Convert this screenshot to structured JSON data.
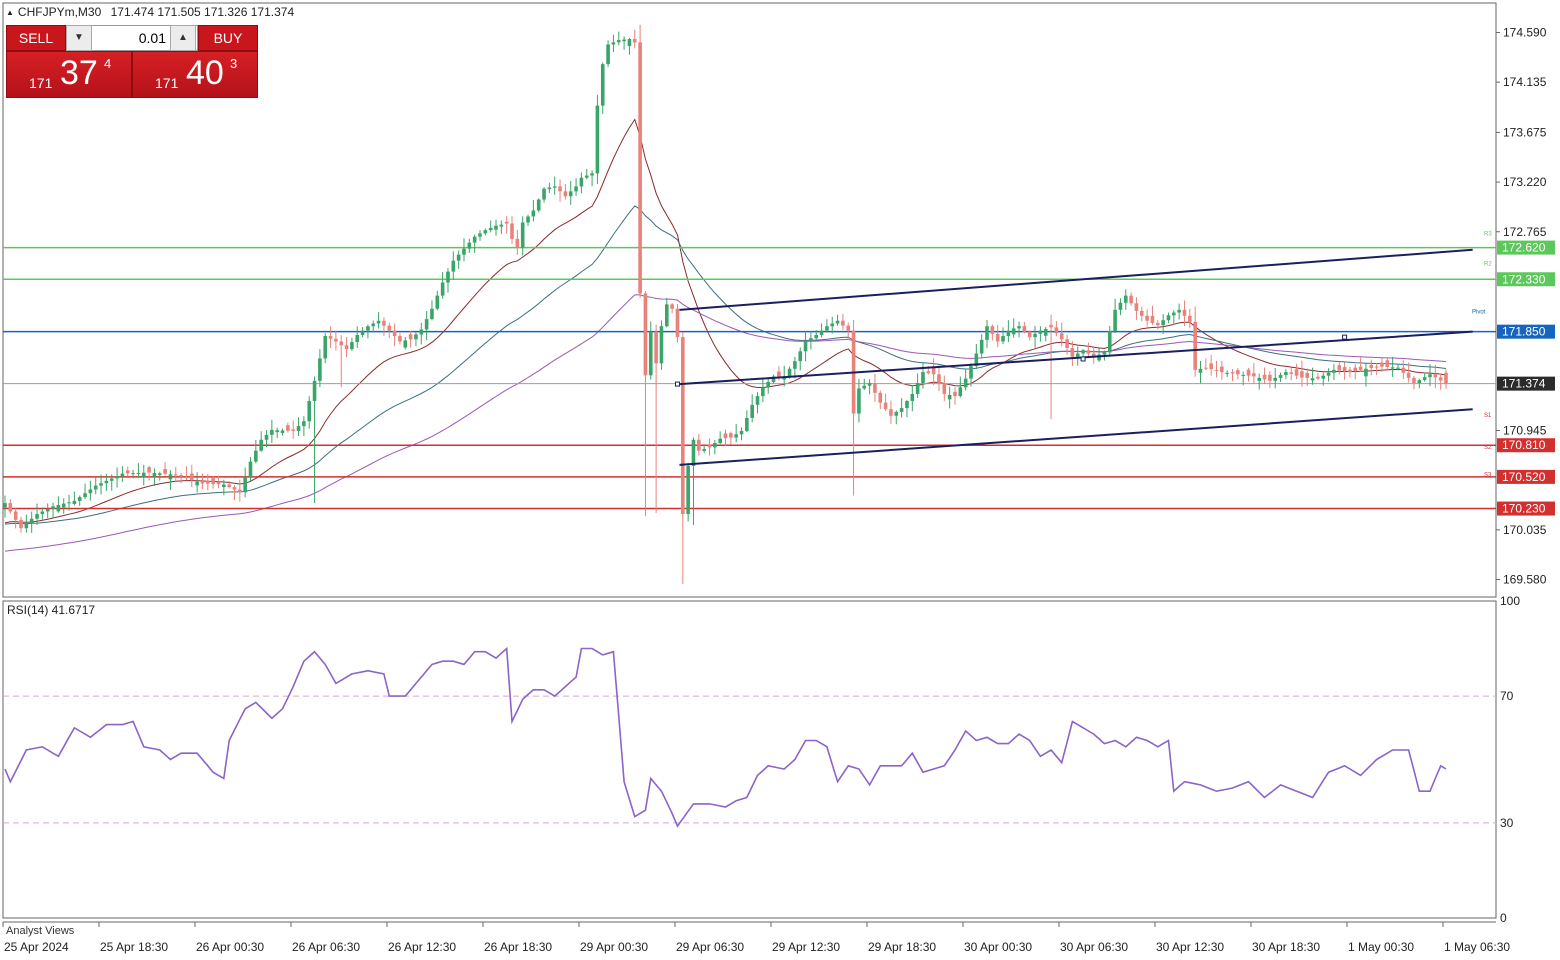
{
  "header": {
    "symbol": "CHFJPYm,M30",
    "ohlc": "171.474 171.505 171.326 171.374"
  },
  "trade_panel": {
    "sell_label": "SELL",
    "buy_label": "BUY",
    "lot_value": "0.01",
    "sell_price": {
      "small": "171",
      "big": "37",
      "sup": "4"
    },
    "buy_price": {
      "small": "171",
      "big": "40",
      "sup": "3"
    },
    "colors": {
      "button": "#c8161c"
    }
  },
  "rsi_label": "RSI(14) 41.6717",
  "analyst_label": "Analyst Views",
  "chart_data": [
    {
      "type": "candlestick",
      "timeframe": "M30",
      "price_axis_ticks": [
        "174.590",
        "174.135",
        "173.675",
        "173.220",
        "172.765",
        "170.945",
        "170.035",
        "169.580"
      ],
      "ylim": [
        169.42,
        174.86
      ],
      "x_tick_labels": [
        "25 Apr 2024",
        "25 Apr 18:30",
        "26 Apr 00:30",
        "26 Apr 06:30",
        "26 Apr 12:30",
        "26 Apr 18:30",
        "29 Apr 00:30",
        "29 Apr 06:30",
        "29 Apr 12:30",
        "29 Apr 18:30",
        "30 Apr 00:30",
        "30 Apr 06:30",
        "30 Apr 12:30",
        "30 Apr 18:30",
        "1 May 00:30",
        "1 May 06:30"
      ],
      "current_price": {
        "label": "171.374",
        "value": 171.374
      },
      "levels": [
        {
          "name": "R3",
          "value": 172.62,
          "label": "172.620",
          "color": "#5cc85c"
        },
        {
          "name": "R2",
          "value": 172.33,
          "label": "172.330",
          "color": "#5cc85c"
        },
        {
          "name": "Pivot",
          "value": 171.85,
          "label": "171.850",
          "color": "#1565c0"
        },
        {
          "name": "S1",
          "value": 170.81,
          "label": "170.810",
          "color": "#d32f2f"
        },
        {
          "name": "S2",
          "value": 170.52,
          "label": "170.520",
          "color": "#d32f2f"
        },
        {
          "name": "S3",
          "value": 170.23,
          "label": "170.230",
          "color": "#d32f2f"
        }
      ],
      "level_tags": [
        "R3",
        "R2",
        "Pivot",
        "S1",
        "S2",
        "S3"
      ],
      "candle_colors": {
        "up": "#3aa569",
        "down": "#e8827a"
      },
      "close_waypoints": [
        [
          0,
          170.28
        ],
        [
          3,
          170.05
        ],
        [
          6,
          170.18
        ],
        [
          9,
          170.25
        ],
        [
          13,
          170.3
        ],
        [
          17,
          170.44
        ],
        [
          22,
          170.55
        ],
        [
          27,
          170.56
        ],
        [
          32,
          170.54
        ],
        [
          37,
          170.46
        ],
        [
          41,
          170.45
        ],
        [
          44,
          170.38
        ],
        [
          46,
          170.66
        ],
        [
          48,
          170.86
        ],
        [
          50,
          170.95
        ],
        [
          54,
          170.94
        ],
        [
          56,
          171.03
        ],
        [
          58,
          171.4
        ],
        [
          60,
          171.81
        ],
        [
          62,
          171.76
        ],
        [
          64,
          171.69
        ],
        [
          66,
          171.82
        ],
        [
          68,
          171.9
        ],
        [
          70,
          171.95
        ],
        [
          72,
          171.86
        ],
        [
          74,
          171.76
        ],
        [
          76,
          171.78
        ],
        [
          78,
          171.87
        ],
        [
          80,
          172.06
        ],
        [
          82,
          172.3
        ],
        [
          84,
          172.5
        ],
        [
          86,
          172.61
        ],
        [
          88,
          172.72
        ],
        [
          90,
          172.78
        ],
        [
          92,
          172.82
        ],
        [
          94,
          172.84
        ],
        [
          95,
          172.7
        ],
        [
          96,
          172.62
        ],
        [
          97,
          172.85
        ],
        [
          99,
          172.96
        ],
        [
          101,
          173.16
        ],
        [
          103,
          173.18
        ],
        [
          105,
          173.09
        ],
        [
          107,
          173.18
        ],
        [
          108,
          173.26
        ],
        [
          110,
          173.3
        ],
        [
          111,
          173.92
        ],
        [
          112,
          174.3
        ],
        [
          113,
          174.48
        ],
        [
          115,
          174.52
        ],
        [
          117,
          174.53
        ],
        [
          118,
          174.5
        ],
        [
          119,
          172.2
        ],
        [
          120,
          171.45
        ],
        [
          121,
          171.85
        ],
        [
          122,
          171.56
        ],
        [
          123,
          171.9
        ],
        [
          124,
          172.1
        ],
        [
          125,
          172.06
        ],
        [
          126,
          171.8
        ],
        [
          127,
          170.18
        ],
        [
          128,
          170.62
        ],
        [
          129,
          170.86
        ],
        [
          130,
          170.76
        ],
        [
          132,
          170.79
        ],
        [
          134,
          170.87
        ],
        [
          136,
          170.88
        ],
        [
          138,
          170.94
        ],
        [
          140,
          171.18
        ],
        [
          142,
          171.34
        ],
        [
          144,
          171.44
        ],
        [
          146,
          171.44
        ],
        [
          148,
          171.58
        ],
        [
          150,
          171.76
        ],
        [
          152,
          171.82
        ],
        [
          154,
          171.9
        ],
        [
          156,
          171.95
        ],
        [
          158,
          171.86
        ],
        [
          159,
          171.1
        ],
        [
          160,
          171.33
        ],
        [
          162,
          171.38
        ],
        [
          164,
          171.2
        ],
        [
          166,
          171.08
        ],
        [
          168,
          171.15
        ],
        [
          170,
          171.28
        ],
        [
          172,
          171.48
        ],
        [
          174,
          171.46
        ],
        [
          176,
          171.28
        ],
        [
          178,
          171.26
        ],
        [
          180,
          171.42
        ],
        [
          182,
          171.65
        ],
        [
          184,
          171.9
        ],
        [
          186,
          171.76
        ],
        [
          188,
          171.86
        ],
        [
          190,
          171.9
        ],
        [
          192,
          171.8
        ],
        [
          194,
          171.86
        ],
        [
          196,
          171.89
        ],
        [
          198,
          171.78
        ],
        [
          200,
          171.62
        ],
        [
          202,
          171.68
        ],
        [
          204,
          171.62
        ],
        [
          206,
          171.66
        ],
        [
          208,
          172.05
        ],
        [
          210,
          172.18
        ],
        [
          212,
          172.04
        ],
        [
          214,
          171.95
        ],
        [
          216,
          171.91
        ],
        [
          218,
          172.0
        ],
        [
          220,
          172.05
        ],
        [
          222,
          171.94
        ],
        [
          223,
          171.5
        ],
        [
          225,
          171.52
        ],
        [
          228,
          171.48
        ],
        [
          231,
          171.46
        ],
        [
          234,
          171.44
        ],
        [
          237,
          171.4
        ],
        [
          240,
          171.48
        ],
        [
          243,
          171.43
        ],
        [
          246,
          171.42
        ],
        [
          249,
          171.5
        ],
        [
          252,
          171.48
        ],
        [
          255,
          171.51
        ],
        [
          258,
          171.53
        ],
        [
          261,
          171.52
        ],
        [
          264,
          171.38
        ],
        [
          267,
          171.46
        ],
        [
          270,
          171.374
        ]
      ],
      "moving_averages": [
        {
          "color": "#8b2a2a"
        },
        {
          "color": "#3c6f7e"
        },
        {
          "color": "#9b59b6"
        }
      ],
      "channel_lines": [
        {
          "p1": [
            126,
            172.05
          ],
          "p2": [
            275,
            172.6
          ]
        },
        {
          "p1": [
            126,
            171.37
          ],
          "p2": [
            275,
            171.85
          ]
        },
        {
          "p1": [
            126,
            170.63
          ],
          "p2": [
            275,
            171.14
          ]
        }
      ]
    },
    {
      "type": "line",
      "indicator": "RSI(14)",
      "value": 41.6717,
      "ylim": [
        0,
        100
      ],
      "y_ticks": [
        "100",
        "70",
        "30",
        "0"
      ],
      "levels": [
        70,
        30
      ],
      "color": "#8a64c8",
      "waypoints": [
        [
          0,
          47
        ],
        [
          1,
          43
        ],
        [
          4,
          53
        ],
        [
          7,
          54
        ],
        [
          10,
          51
        ],
        [
          13,
          60
        ],
        [
          16,
          57
        ],
        [
          19,
          61
        ],
        [
          22,
          61
        ],
        [
          24,
          62
        ],
        [
          26,
          54
        ],
        [
          29,
          53
        ],
        [
          31,
          50
        ],
        [
          33,
          52
        ],
        [
          36,
          52
        ],
        [
          39,
          46
        ],
        [
          41,
          44
        ],
        [
          42,
          56
        ],
        [
          45,
          66
        ],
        [
          47,
          68
        ],
        [
          50,
          63
        ],
        [
          52,
          66
        ],
        [
          54,
          73
        ],
        [
          56,
          81
        ],
        [
          58,
          84
        ],
        [
          60,
          80
        ],
        [
          62,
          74
        ],
        [
          65,
          77
        ],
        [
          68,
          78
        ],
        [
          71,
          77
        ],
        [
          72,
          70
        ],
        [
          75,
          70
        ],
        [
          78,
          76
        ],
        [
          80,
          80
        ],
        [
          82,
          81
        ],
        [
          84,
          81
        ],
        [
          86,
          80
        ],
        [
          88,
          84
        ],
        [
          90,
          84
        ],
        [
          92,
          82
        ],
        [
          94,
          85
        ],
        [
          95,
          62
        ],
        [
          97,
          69
        ],
        [
          99,
          72
        ],
        [
          101,
          72
        ],
        [
          103,
          70
        ],
        [
          105,
          73
        ],
        [
          107,
          76
        ],
        [
          108,
          85
        ],
        [
          110,
          85
        ],
        [
          112,
          83
        ],
        [
          114,
          84
        ],
        [
          116,
          43
        ],
        [
          118,
          32
        ],
        [
          120,
          34
        ],
        [
          121,
          44
        ],
        [
          123,
          40
        ],
        [
          125,
          33
        ],
        [
          126,
          29
        ],
        [
          129,
          36
        ],
        [
          132,
          36
        ],
        [
          135,
          35
        ],
        [
          137,
          37
        ],
        [
          139,
          38
        ],
        [
          141,
          45
        ],
        [
          143,
          48
        ],
        [
          146,
          47
        ],
        [
          148,
          50
        ],
        [
          150,
          56
        ],
        [
          152,
          56
        ],
        [
          154,
          54
        ],
        [
          156,
          43
        ],
        [
          158,
          48
        ],
        [
          160,
          47
        ],
        [
          162,
          42
        ],
        [
          164,
          48
        ],
        [
          166,
          48
        ],
        [
          168,
          48
        ],
        [
          170,
          52
        ],
        [
          172,
          46
        ],
        [
          174,
          47
        ],
        [
          176,
          48
        ],
        [
          178,
          53
        ],
        [
          180,
          59
        ],
        [
          182,
          56
        ],
        [
          184,
          57
        ],
        [
          186,
          55
        ],
        [
          188,
          55
        ],
        [
          190,
          58
        ],
        [
          192,
          56
        ],
        [
          194,
          51
        ],
        [
          196,
          53
        ],
        [
          198,
          49
        ],
        [
          200,
          62
        ],
        [
          202,
          60
        ],
        [
          204,
          58
        ],
        [
          206,
          55
        ],
        [
          208,
          56
        ],
        [
          210,
          54
        ],
        [
          212,
          57
        ],
        [
          214,
          56
        ],
        [
          216,
          54
        ],
        [
          218,
          56
        ],
        [
          219,
          40
        ],
        [
          221,
          43
        ],
        [
          224,
          42
        ],
        [
          227,
          40
        ],
        [
          230,
          41
        ],
        [
          233,
          43
        ],
        [
          236,
          38
        ],
        [
          239,
          42
        ],
        [
          242,
          40
        ],
        [
          245,
          38
        ],
        [
          248,
          46
        ],
        [
          251,
          48
        ],
        [
          254,
          45
        ],
        [
          257,
          50
        ],
        [
          260,
          53
        ],
        [
          263,
          53
        ],
        [
          265,
          40
        ],
        [
          267,
          40
        ],
        [
          269,
          48
        ],
        [
          271,
          46
        ],
        [
          272,
          43
        ]
      ]
    }
  ]
}
